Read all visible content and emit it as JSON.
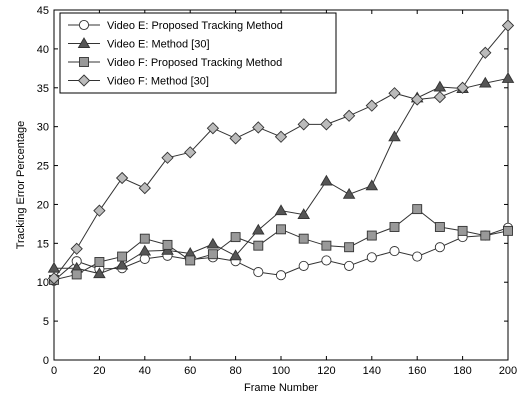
{
  "chart_data": {
    "type": "line",
    "xlabel": "Frame Number",
    "ylabel": "Tracking Error Percentage",
    "xlim": [
      0,
      200
    ],
    "ylim": [
      0,
      45
    ],
    "xticks": [
      "0",
      "20",
      "40",
      "60",
      "80",
      "100",
      "120",
      "140",
      "160",
      "180",
      "200"
    ],
    "yticks": [
      "0",
      "5",
      "10",
      "15",
      "20",
      "25",
      "30",
      "35",
      "40",
      "45"
    ],
    "grid": false,
    "legend_position": "top-left",
    "series": [
      {
        "name": "Video E: Proposed Tracking Method",
        "marker": "circle",
        "fill": "#ffffff",
        "x": [
          0,
          10,
          20,
          30,
          40,
          50,
          60,
          70,
          80,
          90,
          100,
          110,
          120,
          130,
          140,
          150,
          160,
          170,
          180,
          190,
          200
        ],
        "y": [
          10.2,
          12.7,
          11.7,
          11.8,
          13.0,
          13.4,
          12.9,
          13.2,
          12.7,
          11.3,
          10.9,
          12.1,
          12.8,
          12.1,
          13.2,
          14.0,
          13.3,
          14.5,
          15.8,
          16.0,
          17.0
        ]
      },
      {
        "name": "Video E: Method [30]",
        "marker": "triangle",
        "fill": "#555555",
        "x": [
          0,
          10,
          20,
          30,
          40,
          50,
          60,
          70,
          80,
          90,
          100,
          110,
          120,
          130,
          140,
          150,
          160,
          170,
          180,
          190,
          200
        ],
        "y": [
          11.8,
          11.8,
          11.1,
          12.2,
          14.0,
          14.1,
          13.7,
          14.9,
          13.4,
          16.7,
          19.2,
          18.7,
          23.0,
          21.3,
          22.4,
          28.7,
          33.7,
          35.1,
          34.9,
          35.6,
          36.2
        ]
      },
      {
        "name": "Video F: Proposed Tracking Method",
        "marker": "square",
        "fill": "#999999",
        "x": [
          0,
          10,
          20,
          30,
          40,
          50,
          60,
          70,
          80,
          90,
          100,
          110,
          120,
          130,
          140,
          150,
          160,
          170,
          180,
          190,
          200
        ],
        "y": [
          10.3,
          11.0,
          12.6,
          13.3,
          15.6,
          14.8,
          12.8,
          13.6,
          15.8,
          14.7,
          16.8,
          15.6,
          14.7,
          14.5,
          16.0,
          17.1,
          19.4,
          17.1,
          16.6,
          16.0,
          16.6
        ]
      },
      {
        "name": "Video F: Method [30]",
        "marker": "diamond",
        "fill": "#bbbbbb",
        "x": [
          0,
          10,
          20,
          30,
          40,
          50,
          60,
          70,
          80,
          90,
          100,
          110,
          120,
          130,
          140,
          150,
          160,
          170,
          180,
          190,
          200
        ],
        "y": [
          10.5,
          14.3,
          19.2,
          23.4,
          22.1,
          26.0,
          26.7,
          29.8,
          28.5,
          29.9,
          28.7,
          30.3,
          30.3,
          31.4,
          32.7,
          34.3,
          33.5,
          33.8,
          35.0,
          39.5,
          43.0
        ]
      }
    ]
  }
}
